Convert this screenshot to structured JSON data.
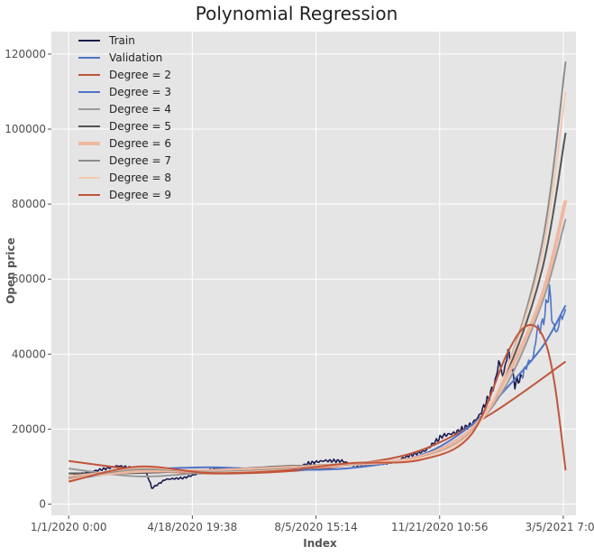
{
  "chart_data": {
    "type": "line",
    "title": "Polynomial Regression",
    "xlabel": "Index",
    "ylabel": "Open price",
    "x_tick_labels": [
      "1/1/2020 0:00",
      "4/18/2020 19:38",
      "8/5/2020 15:14",
      "11/21/2020 10:56",
      "3/5/2021 7:06"
    ],
    "xlim": [
      "2019-12-17",
      "2021-03-16"
    ],
    "ylim": [
      -3000,
      126000
    ],
    "y_ticks": [
      0,
      20000,
      40000,
      60000,
      80000,
      100000,
      120000
    ],
    "y_tick_labels": [
      "0",
      "20000",
      "40000",
      "60000",
      "80000",
      "100000",
      "120000"
    ],
    "grid": true,
    "legend_position": "top-left",
    "background": "#e5e5e5",
    "series": [
      {
        "name": "Train",
        "color": "#1a1a4e",
        "dates": [
          "2020-01-01",
          "2020-01-20",
          "2020-02-05",
          "2020-02-13",
          "2020-02-25",
          "2020-03-08",
          "2020-03-12",
          "2020-03-13",
          "2020-03-25",
          "2020-04-10",
          "2020-04-29",
          "2020-05-08",
          "2020-05-20",
          "2020-06-05",
          "2020-06-25",
          "2020-07-15",
          "2020-07-27",
          "2020-08-10",
          "2020-08-25",
          "2020-09-05",
          "2020-09-25",
          "2020-10-10",
          "2020-10-22",
          "2020-11-05",
          "2020-11-20",
          "2020-12-01",
          "2020-12-15",
          "2020-12-22",
          "2020-12-31",
          "2021-01-05",
          "2021-01-08",
          "2021-01-12",
          "2021-01-16",
          "2021-01-22",
          "2021-01-28"
        ],
        "values": [
          7200,
          8600,
          9700,
          10200,
          9600,
          8500,
          5500,
          4200,
          6600,
          7000,
          8800,
          9600,
          9300,
          9500,
          9200,
          9300,
          10900,
          11600,
          11500,
          10300,
          10700,
          11400,
          12900,
          14200,
          18200,
          19000,
          21200,
          23500,
          28900,
          32500,
          38000,
          34000,
          41000,
          32000,
          34000
        ]
      },
      {
        "name": "Validation",
        "color": "#4e74c6",
        "dates": [
          "2021-01-28",
          "2021-02-02",
          "2021-02-07",
          "2021-02-10",
          "2021-02-15",
          "2021-02-19",
          "2021-02-21",
          "2021-02-23",
          "2021-02-26",
          "2021-03-01",
          "2021-03-03",
          "2021-03-05",
          "2021-03-07"
        ],
        "values": [
          34000,
          37500,
          39000,
          46000,
          48000,
          54000,
          57500,
          50000,
          46000,
          47000,
          51000,
          49000,
          52000
        ]
      },
      {
        "name": "Degree = 2",
        "color": "#c1553b",
        "width": 2,
        "dates": [
          "2020-01-01",
          "2020-03-01",
          "2020-05-01",
          "2020-07-01",
          "2020-09-01",
          "2020-11-01",
          "2021-01-01",
          "2021-03-07"
        ],
        "values": [
          11500,
          9200,
          8200,
          8600,
          10500,
          14300,
          24000,
          38000
        ]
      },
      {
        "name": "Degree = 3",
        "color": "#4e74c6",
        "width": 2,
        "dates": [
          "2020-01-01",
          "2020-03-01",
          "2020-05-01",
          "2020-07-01",
          "2020-09-01",
          "2020-11-01",
          "2020-12-15",
          "2021-01-15",
          "2021-02-15",
          "2021-03-07"
        ],
        "values": [
          6500,
          9000,
          9800,
          9200,
          9600,
          13000,
          21000,
          31000,
          42000,
          53000
        ]
      },
      {
        "name": "Degree = 4",
        "color": "#999999",
        "width": 2,
        "dates": [
          "2020-01-01",
          "2020-03-01",
          "2020-05-01",
          "2020-07-01",
          "2020-09-01",
          "2020-11-01",
          "2020-12-15",
          "2021-01-15",
          "2021-02-15",
          "2021-03-07"
        ],
        "values": [
          9500,
          7400,
          8500,
          10100,
          10500,
          12800,
          20000,
          32000,
          54000,
          76000
        ]
      },
      {
        "name": "Degree = 5",
        "color": "#555555",
        "width": 2,
        "dates": [
          "2020-01-01",
          "2020-03-01",
          "2020-05-01",
          "2020-07-01",
          "2020-09-01",
          "2020-11-01",
          "2020-12-15",
          "2021-01-15",
          "2021-02-15",
          "2021-03-07"
        ],
        "values": [
          8200,
          8300,
          9000,
          10000,
          10800,
          12600,
          19600,
          35000,
          63000,
          99000
        ]
      },
      {
        "name": "Degree = 6",
        "color": "#f0b8a0",
        "width": 4,
        "dates": [
          "2020-01-01",
          "2020-03-01",
          "2020-05-01",
          "2020-07-01",
          "2020-09-01",
          "2020-11-01",
          "2020-12-15",
          "2021-01-15",
          "2021-02-15",
          "2021-03-07"
        ],
        "values": [
          7200,
          8800,
          8900,
          9600,
          10600,
          12600,
          19800,
          34000,
          56000,
          81000
        ]
      },
      {
        "name": "Degree = 7",
        "color": "#8c8c8c",
        "width": 2,
        "dates": [
          "2020-01-01",
          "2020-03-01",
          "2020-05-01",
          "2020-07-01",
          "2020-09-01",
          "2020-11-01",
          "2020-12-15",
          "2021-01-15",
          "2021-02-15",
          "2021-03-07"
        ],
        "values": [
          6800,
          9300,
          8600,
          9300,
          10700,
          12400,
          19200,
          36000,
          70000,
          118000
        ]
      },
      {
        "name": "Degree = 8",
        "color": "#f5c9b0",
        "width": 2,
        "dates": [
          "2020-01-01",
          "2020-03-01",
          "2020-05-01",
          "2020-07-01",
          "2020-09-01",
          "2020-11-01",
          "2020-12-15",
          "2021-01-15",
          "2021-02-15",
          "2021-03-07"
        ],
        "values": [
          6500,
          9700,
          8400,
          9100,
          10800,
          12300,
          19000,
          36000,
          67000,
          110000
        ]
      },
      {
        "name": "Degree = 9",
        "color": "#c1553b",
        "width": 2,
        "dates": [
          "2020-01-01",
          "2020-03-01",
          "2020-05-01",
          "2020-07-01",
          "2020-09-01",
          "2020-11-01",
          "2020-12-15",
          "2021-01-15",
          "2021-02-01",
          "2021-02-15",
          "2021-02-25",
          "2021-03-07"
        ],
        "values": [
          6000,
          10000,
          8300,
          8900,
          10900,
          11800,
          18500,
          40000,
          47500,
          45000,
          33000,
          9000
        ]
      }
    ]
  }
}
